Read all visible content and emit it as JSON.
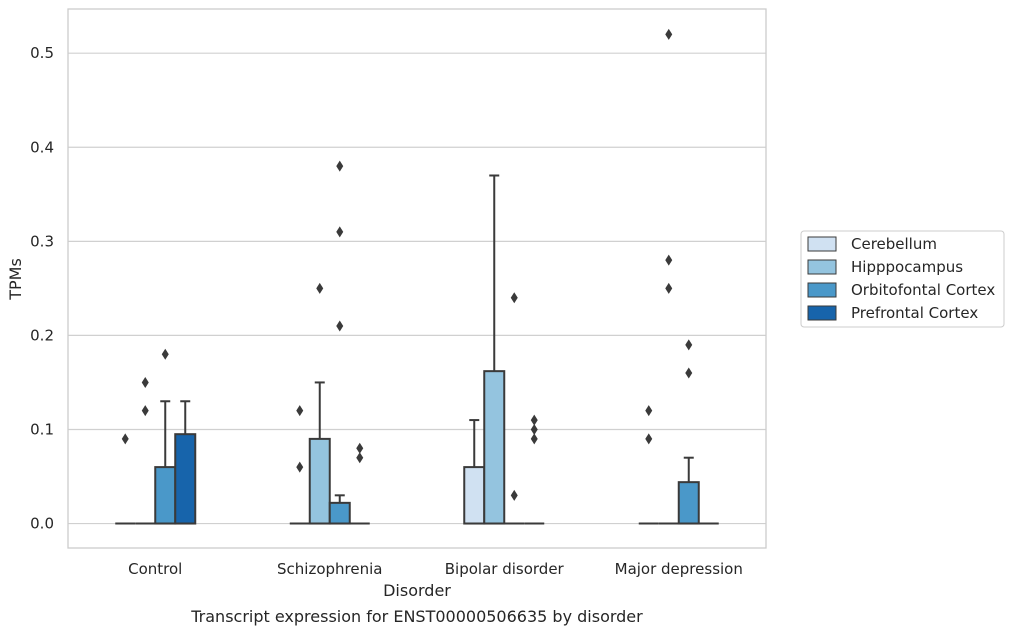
{
  "caption": "Transcript expression for ENST00000506635 by disorder",
  "colors": {
    "Cerebellum": "#d0e1f2",
    "Hipppocampus": "#94c4df",
    "Orbitofontal Cortex": "#4a98c9",
    "Prefrontal Cortex": "#1764ab",
    "outline": "#3a3a3a",
    "grid": "#d0d0d0",
    "frame": "#cccccc"
  },
  "chart_data": {
    "type": "box",
    "title": "",
    "xlabel": "Disorder",
    "ylabel": "TPMs",
    "ylim": [
      -0.026,
      0.547
    ],
    "yticks": [
      0.0,
      0.1,
      0.2,
      0.3,
      0.4,
      0.5
    ],
    "ytick_labels": [
      "0.0",
      "0.1",
      "0.2",
      "0.3",
      "0.4",
      "0.5"
    ],
    "grid": true,
    "legend_position": "right",
    "categories": [
      "Control",
      "Schizophrenia",
      "Bipolar disorder",
      "Major depression"
    ],
    "series": [
      {
        "name": "Cerebellum",
        "boxes": [
          {
            "q1": 0,
            "q3": 0,
            "median": 0,
            "whislo": 0,
            "whishi": 0,
            "fliers": [
              0.09
            ]
          },
          {
            "q1": 0,
            "q3": 0,
            "median": 0,
            "whislo": 0,
            "whishi": 0,
            "fliers": [
              0.12,
              0.06
            ]
          },
          {
            "q1": 0,
            "q3": 0.06,
            "median": 0,
            "whislo": 0,
            "whishi": 0.11,
            "fliers": []
          },
          {
            "q1": 0,
            "q3": 0,
            "median": 0,
            "whislo": 0,
            "whishi": 0,
            "fliers": [
              0.12,
              0.09
            ]
          }
        ]
      },
      {
        "name": "Hipppocampus",
        "boxes": [
          {
            "q1": 0,
            "q3": 0,
            "median": 0,
            "whislo": 0,
            "whishi": 0,
            "fliers": [
              0.15,
              0.12
            ]
          },
          {
            "q1": 0,
            "q3": 0.09,
            "median": 0,
            "whislo": 0,
            "whishi": 0.15,
            "fliers": [
              0.25
            ]
          },
          {
            "q1": 0,
            "q3": 0.162,
            "median": 0,
            "whislo": 0,
            "whishi": 0.37,
            "fliers": []
          },
          {
            "q1": 0,
            "q3": 0,
            "median": 0,
            "whislo": 0,
            "whishi": 0,
            "fliers": [
              0.52,
              0.28,
              0.25
            ]
          }
        ]
      },
      {
        "name": "Orbitofontal Cortex",
        "boxes": [
          {
            "q1": 0,
            "q3": 0.06,
            "median": 0,
            "whislo": 0,
            "whishi": 0.13,
            "fliers": [
              0.18
            ]
          },
          {
            "q1": 0,
            "q3": 0.022,
            "median": 0,
            "whislo": 0,
            "whishi": 0.03,
            "fliers": [
              0.38,
              0.31,
              0.21
            ]
          },
          {
            "q1": 0,
            "q3": 0,
            "median": 0,
            "whislo": 0,
            "whishi": 0,
            "fliers": [
              0.24,
              0.03
            ]
          },
          {
            "q1": 0,
            "q3": 0.044,
            "median": 0,
            "whislo": 0,
            "whishi": 0.07,
            "fliers": [
              0.19,
              0.16
            ]
          }
        ]
      },
      {
        "name": "Prefrontal Cortex",
        "boxes": [
          {
            "q1": 0,
            "q3": 0.095,
            "median": 0,
            "whislo": 0,
            "whishi": 0.13,
            "fliers": []
          },
          {
            "q1": 0,
            "q3": 0,
            "median": 0,
            "whislo": 0,
            "whishi": 0,
            "fliers": [
              0.08,
              0.07
            ]
          },
          {
            "q1": 0,
            "q3": 0,
            "median": 0,
            "whislo": 0,
            "whishi": 0,
            "fliers": [
              0.11,
              0.1,
              0.09
            ]
          },
          {
            "q1": 0,
            "q3": 0,
            "median": 0,
            "whislo": 0,
            "whishi": 0,
            "fliers": []
          }
        ]
      }
    ]
  }
}
